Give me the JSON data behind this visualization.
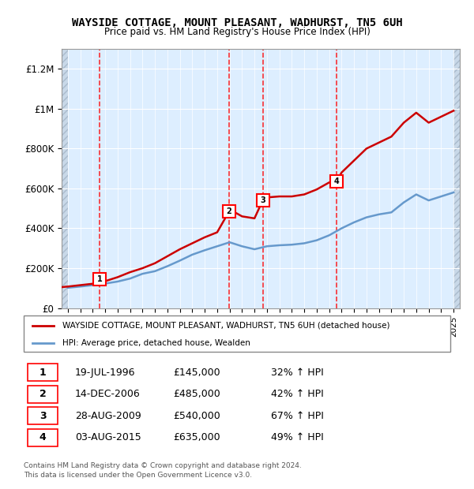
{
  "title": "WAYSIDE COTTAGE, MOUNT PLEASANT, WADHURST, TN5 6UH",
  "subtitle": "Price paid vs. HM Land Registry's House Price Index (HPI)",
  "legend_line1": "WAYSIDE COTTAGE, MOUNT PLEASANT, WADHURST, TN5 6UH (detached house)",
  "legend_line2": "HPI: Average price, detached house, Wealden",
  "footer1": "Contains HM Land Registry data © Crown copyright and database right 2024.",
  "footer2": "This data is licensed under the Open Government Licence v3.0.",
  "sale_color": "#cc0000",
  "hpi_color": "#6699cc",
  "background_plot": "#ddeeff",
  "hatch_color": "#bbccdd",
  "ylim": [
    0,
    1300000
  ],
  "yticks": [
    0,
    200000,
    400000,
    600000,
    800000,
    1000000,
    1200000
  ],
  "ytick_labels": [
    "£0",
    "£200K",
    "£400K",
    "£600K",
    "£800K",
    "£1M",
    "£1.2M"
  ],
  "xlim_start": 1993.5,
  "xlim_end": 2025.5,
  "sales": [
    {
      "label": "1",
      "date": 1996.54,
      "price": 145000
    },
    {
      "label": "2",
      "date": 2006.96,
      "price": 485000
    },
    {
      "label": "3",
      "date": 2009.66,
      "price": 540000
    },
    {
      "label": "4",
      "date": 2015.59,
      "price": 635000
    }
  ],
  "sale_table": [
    {
      "num": "1",
      "date": "19-JUL-1996",
      "price": "£145,000",
      "hpi": "32% ↑ HPI"
    },
    {
      "num": "2",
      "date": "14-DEC-2006",
      "price": "£485,000",
      "hpi": "42% ↑ HPI"
    },
    {
      "num": "3",
      "date": "28-AUG-2009",
      "price": "£540,000",
      "hpi": "67% ↑ HPI"
    },
    {
      "num": "4",
      "date": "03-AUG-2015",
      "price": "£635,000",
      "hpi": "49% ↑ HPI"
    }
  ],
  "hpi_years": [
    1994,
    1995,
    1996,
    1997,
    1998,
    1999,
    2000,
    2001,
    2002,
    2003,
    2004,
    2005,
    2006,
    2007,
    2008,
    2009,
    2010,
    2011,
    2012,
    2013,
    2014,
    2015,
    2016,
    2017,
    2018,
    2019,
    2020,
    2021,
    2022,
    2023,
    2024,
    2025
  ],
  "hpi_values": [
    102000,
    108000,
    115000,
    123000,
    133000,
    148000,
    172000,
    185000,
    210000,
    238000,
    268000,
    290000,
    310000,
    330000,
    310000,
    295000,
    310000,
    315000,
    318000,
    325000,
    340000,
    365000,
    400000,
    430000,
    455000,
    470000,
    480000,
    530000,
    570000,
    540000,
    560000,
    580000
  ],
  "sale_line_years": [
    1993.5,
    1994,
    1995,
    1996,
    1997,
    1998,
    1999,
    2000,
    2001,
    2002,
    2003,
    2004,
    2005,
    2006,
    2006.96,
    2007,
    2008,
    2009,
    2009.66,
    2010,
    2011,
    2012,
    2013,
    2014,
    2015,
    2015.59,
    2016,
    2017,
    2018,
    2019,
    2020,
    2021,
    2022,
    2023,
    2024,
    2025
  ],
  "sale_line_values": [
    105000,
    108000,
    115000,
    122000,
    135000,
    155000,
    180000,
    200000,
    225000,
    260000,
    295000,
    325000,
    355000,
    380000,
    485000,
    495000,
    460000,
    450000,
    540000,
    555000,
    560000,
    560000,
    570000,
    595000,
    630000,
    635000,
    680000,
    740000,
    800000,
    830000,
    860000,
    930000,
    980000,
    930000,
    960000,
    990000
  ]
}
